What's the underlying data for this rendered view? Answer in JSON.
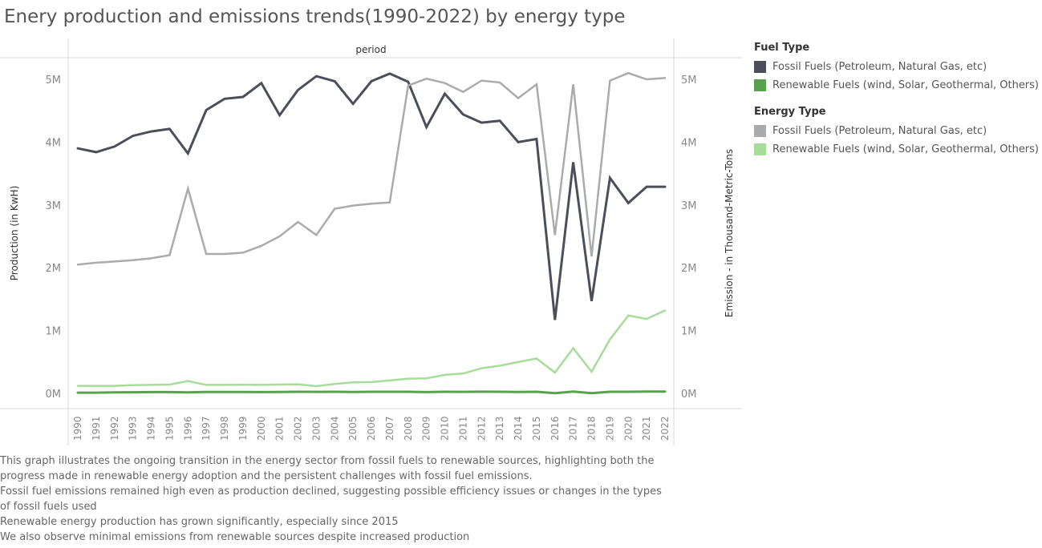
{
  "title": "Enery production and emissions trends(1990-2022) by energy type",
  "chart_data": {
    "type": "line",
    "column_header": "period",
    "x": [
      1990,
      1991,
      1992,
      1993,
      1994,
      1995,
      1996,
      1997,
      1998,
      1999,
      2000,
      2001,
      2002,
      2003,
      2004,
      2005,
      2006,
      2007,
      2008,
      2009,
      2010,
      2011,
      2012,
      2013,
      2014,
      2015,
      2016,
      2017,
      2018,
      2019,
      2020,
      2021,
      2022
    ],
    "x_tick_labels": [
      "1990",
      "1991",
      "1992",
      "1993",
      "1994",
      "1995",
      "1996",
      "1997",
      "1998",
      "1999",
      "2000",
      "2001",
      "2002",
      "2003",
      "2004",
      "2005",
      "2006",
      "2007",
      "2008",
      "2009",
      "2010",
      "2011",
      "2012",
      "2013",
      "2014",
      "2015",
      "2016",
      "2017",
      "2018",
      "2019",
      "2020",
      "2021",
      "2022"
    ],
    "y_left": {
      "label": "Production (in KwH)",
      "range": [
        0,
        5000000
      ],
      "ticks": [
        0,
        1000000,
        2000000,
        3000000,
        4000000,
        5000000
      ],
      "tick_labels": [
        "0M",
        "1M",
        "2M",
        "3M",
        "4M",
        "5M"
      ]
    },
    "y_right": {
      "label": "Emission - in Thousand-Metric-Tons",
      "range": [
        0,
        5000000
      ],
      "ticks": [
        0,
        1000000,
        2000000,
        3000000,
        4000000,
        5000000
      ],
      "tick_labels": [
        "0M",
        "1M",
        "2M",
        "3M",
        "4M",
        "5M"
      ]
    },
    "grid": false,
    "legend_position": "right",
    "series": [
      {
        "legend_group": "Fuel Type",
        "axis": "left",
        "color": "#4a4f5a",
        "width": 3,
        "values": [
          3900000,
          3840000,
          3930000,
          4100000,
          4170000,
          4210000,
          3820000,
          4510000,
          4690000,
          4720000,
          4940000,
          4430000,
          4830000,
          5050000,
          4970000,
          4610000,
          4970000,
          5090000,
          4960000,
          4240000,
          4770000,
          4440000,
          4310000,
          4340000,
          4000000,
          4050000,
          1170000,
          3680000,
          1470000,
          3430000,
          3030000,
          3290000,
          3290000
        ]
      },
      {
        "legend_group": "Fuel Type",
        "axis": "left",
        "color": "#59a14f",
        "width": 3,
        "values": [
          12000,
          12000,
          17000,
          18000,
          20000,
          21000,
          15000,
          23000,
          23000,
          22000,
          21000,
          22000,
          26000,
          24000,
          25000,
          22000,
          26000,
          26000,
          25000,
          20000,
          25000,
          24000,
          27000,
          26000,
          23000,
          25000,
          3000,
          28000,
          4000,
          25000,
          26000,
          28000,
          28000
        ]
      },
      {
        "legend_group": "Energy Type",
        "axis": "right",
        "color": "#a9abac",
        "width": 2.5,
        "values": [
          2050000,
          2080000,
          2100000,
          2120000,
          2150000,
          2200000,
          3260000,
          2220000,
          2220000,
          2240000,
          2350000,
          2500000,
          2730000,
          2520000,
          2940000,
          2990000,
          3020000,
          3040000,
          4900000,
          5010000,
          4940000,
          4800000,
          4980000,
          4950000,
          4700000,
          4920000,
          2520000,
          4920000,
          2180000,
          4980000,
          5100000,
          5000000,
          5020000
        ]
      },
      {
        "legend_group": "Energy Type",
        "axis": "right",
        "color": "#a8dc9a",
        "width": 2.5,
        "values": [
          120000,
          120000,
          120000,
          130000,
          135000,
          140000,
          195000,
          135000,
          135000,
          138000,
          135000,
          140000,
          145000,
          115000,
          150000,
          175000,
          180000,
          205000,
          235000,
          240000,
          295000,
          315000,
          400000,
          440000,
          500000,
          555000,
          330000,
          720000,
          345000,
          860000,
          1240000,
          1185000,
          1320000
        ]
      }
    ]
  },
  "legend": {
    "groups": [
      {
        "title": "Fuel Type",
        "items": [
          {
            "label": "Fossil Fuels (Petroleum, Natural Gas, etc)",
            "color": "#4a4f5a"
          },
          {
            "label": "Renewable Fuels (wind, Solar, Geothermal, Others)",
            "color": "#59a14f"
          }
        ]
      },
      {
        "title": "Energy Type",
        "items": [
          {
            "label": "Fossil Fuels (Petroleum, Natural Gas, etc)",
            "color": "#a9abac"
          },
          {
            "label": "Renewable Fuels (wind, Solar, Geothermal, Others)",
            "color": "#a8dc9a"
          }
        ]
      }
    ]
  },
  "notes": [
    "This graph illustrates the ongoing transition in the energy sector from fossil fuels to renewable sources, highlighting both the progress made in renewable energy adoption and the persistent challenges with fossil fuel emissions.",
    "Fossil fuel emissions remained high even as production declined, suggesting possible efficiency issues or changes in the types of fossil fuels used",
    "Renewable energy production has grown significantly, especially since 2015",
    "We also observe minimal emissions from renewable sources despite increased production"
  ]
}
